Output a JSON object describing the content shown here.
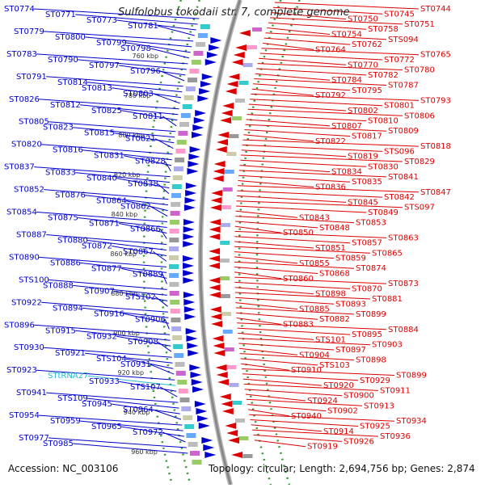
{
  "title": "Sulfolobus tokodaii str. 7, complete genome",
  "accession": "Accession: NC_003106",
  "summary": "Topology: circular; Length: 2,694,756 bp; Genes: 2,874",
  "colors": {
    "forward": "#0000cc",
    "reverse": "#dd0000",
    "rna": "#22bbcc",
    "backbone": "#888888",
    "dots": "#339933"
  },
  "ticks": [
    "760 kbp",
    "780 kbp",
    "800 kbp",
    "820 kbp",
    "840 kbp",
    "860 kbp",
    "880 kbp",
    "900 kbp",
    "920 kbp",
    "940 kbp",
    "960 kbp"
  ],
  "left_labels": [
    {
      "text": "ST0774",
      "c": "f"
    },
    {
      "text": "ST0771",
      "c": "f"
    },
    {
      "text": "ST0773",
      "c": "f"
    },
    {
      "text": "ST0781",
      "c": "f"
    },
    {
      "text": "ST0779",
      "c": "f"
    },
    {
      "text": "ST0800",
      "c": "f"
    },
    {
      "text": "ST0799",
      "c": "f"
    },
    {
      "text": "ST0798",
      "c": "f"
    },
    {
      "text": "ST0783",
      "c": "f"
    },
    {
      "text": "ST0790",
      "c": "f"
    },
    {
      "text": "ST0797",
      "c": "f"
    },
    {
      "text": "ST0796",
      "c": "f"
    },
    {
      "text": "ST0791",
      "c": "f"
    },
    {
      "text": "ST0814",
      "c": "f"
    },
    {
      "text": "ST0813",
      "c": "f"
    },
    {
      "text": "ST0803",
      "c": "f"
    },
    {
      "text": "ST0826",
      "c": "f"
    },
    {
      "text": "ST0812",
      "c": "f"
    },
    {
      "text": "ST0825",
      "c": "f"
    },
    {
      "text": "ST0811",
      "c": "f"
    },
    {
      "text": "ST0805",
      "c": "f"
    },
    {
      "text": "ST0823",
      "c": "f"
    },
    {
      "text": "ST0815",
      "c": "f"
    },
    {
      "text": "ST0821",
      "c": "f"
    },
    {
      "text": "ST0820",
      "c": "f"
    },
    {
      "text": "ST0816",
      "c": "f"
    },
    {
      "text": "ST0831",
      "c": "f"
    },
    {
      "text": "ST0828",
      "c": "f"
    },
    {
      "text": "ST0837",
      "c": "f"
    },
    {
      "text": "ST0833",
      "c": "f"
    },
    {
      "text": "ST0840",
      "c": "f"
    },
    {
      "text": "ST0838",
      "c": "f"
    },
    {
      "text": "ST0852",
      "c": "f"
    },
    {
      "text": "ST0876",
      "c": "f"
    },
    {
      "text": "ST0864",
      "c": "f"
    },
    {
      "text": "ST0862",
      "c": "f"
    },
    {
      "text": "ST0854",
      "c": "f"
    },
    {
      "text": "ST0875",
      "c": "f"
    },
    {
      "text": "ST0871",
      "c": "f"
    },
    {
      "text": "ST0866",
      "c": "f"
    },
    {
      "text": "ST0887",
      "c": "f"
    },
    {
      "text": "ST0880",
      "c": "f"
    },
    {
      "text": "ST0872",
      "c": "f"
    },
    {
      "text": "ST0867",
      "c": "f"
    },
    {
      "text": "ST0890",
      "c": "f"
    },
    {
      "text": "ST0886",
      "c": "f"
    },
    {
      "text": "ST0877",
      "c": "f"
    },
    {
      "text": "ST0889",
      "c": "f"
    },
    {
      "text": "STS100",
      "c": "f"
    },
    {
      "text": "ST0888",
      "c": "f"
    },
    {
      "text": "ST0907",
      "c": "f"
    },
    {
      "text": "STS102",
      "c": "f"
    },
    {
      "text": "ST0922",
      "c": "f"
    },
    {
      "text": "ST0894",
      "c": "f"
    },
    {
      "text": "ST0916",
      "c": "f"
    },
    {
      "text": "ST0906",
      "c": "f"
    },
    {
      "text": "ST0896",
      "c": "f"
    },
    {
      "text": "ST0915",
      "c": "f"
    },
    {
      "text": "ST0932",
      "c": "f"
    },
    {
      "text": "ST0908",
      "c": "f"
    },
    {
      "text": "ST0930",
      "c": "f"
    },
    {
      "text": "ST0921",
      "c": "f"
    },
    {
      "text": "STS104",
      "c": "f"
    },
    {
      "text": "ST0931",
      "c": "f"
    },
    {
      "text": "ST0923",
      "c": "f"
    },
    {
      "text": "STtRNA27",
      "c": "r"
    },
    {
      "text": "ST0933",
      "c": "f"
    },
    {
      "text": "STS107",
      "c": "f"
    },
    {
      "text": "ST0941",
      "c": "f"
    },
    {
      "text": "STS109",
      "c": "f"
    },
    {
      "text": "ST0945",
      "c": "f"
    },
    {
      "text": "ST0964",
      "c": "f"
    },
    {
      "text": "ST0954",
      "c": "f"
    },
    {
      "text": "ST0959",
      "c": "f"
    },
    {
      "text": "ST0965",
      "c": "f"
    },
    {
      "text": "ST0972",
      "c": "f"
    },
    {
      "text": "ST0977",
      "c": "f"
    },
    {
      "text": "ST0985",
      "c": "f"
    }
  ],
  "right_labels": [
    "ST0744",
    "ST0745",
    "ST0750",
    "ST0751",
    "ST0758",
    "ST0754",
    "STS094",
    "ST0762",
    "ST0764",
    "ST0765",
    "ST0772",
    "ST0770",
    "ST0780",
    "ST0782",
    "ST0784",
    "ST0787",
    "ST0795",
    "ST0792",
    "ST0793",
    "ST0801",
    "ST0802",
    "ST0806",
    "ST0810",
    "ST0807",
    "ST0809",
    "ST0817",
    "ST0822",
    "ST0818",
    "STS096",
    "ST0819",
    "ST0829",
    "ST0830",
    "ST0834",
    "ST0841",
    "ST0835",
    "ST0836",
    "ST0847",
    "ST0842",
    "ST0845",
    "STS097",
    "ST0849",
    "ST0843",
    "ST0853",
    "ST0848",
    "ST0850",
    "ST0863",
    "ST0857",
    "ST0851",
    "ST0865",
    "ST0859",
    "ST0855",
    "ST0874",
    "ST0868",
    "ST0860",
    "ST0873",
    "ST0870",
    "ST0898",
    "ST0881",
    "ST0893",
    "ST0885",
    "ST0899",
    "ST0882",
    "ST0883",
    "ST0884",
    "ST0895",
    "STS101",
    "ST0903",
    "ST0897",
    "ST0904",
    "ST0898",
    "STS103",
    "ST0910",
    "ST0899",
    "ST0929",
    "ST0920",
    "ST0911",
    "ST0900",
    "ST0924",
    "ST0913",
    "ST0902",
    "ST0940",
    "ST0934",
    "ST0925",
    "ST0914",
    "ST0936",
    "ST0926",
    "ST0919"
  ]
}
